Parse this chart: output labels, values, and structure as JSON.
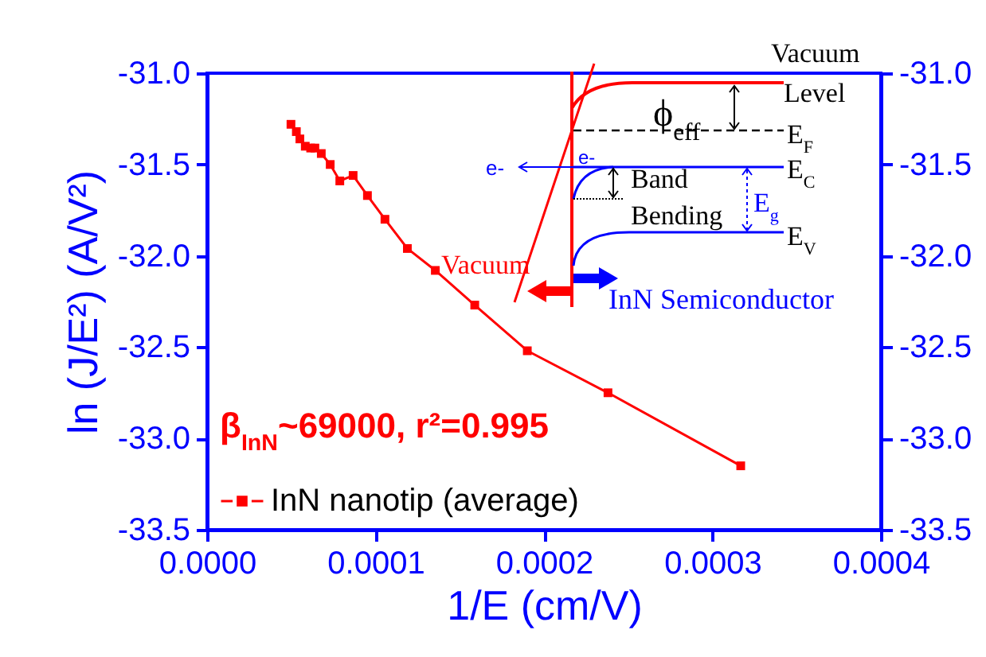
{
  "chart_data": {
    "type": "line",
    "xlabel": "1/E (cm/V)",
    "ylabel": "ln (J/E²) (A/V²)",
    "x": [
      4.98e-05,
      5.3e-05,
      5.51e-05,
      5.83e-05,
      6.15e-05,
      6.4e-05,
      6.78e-05,
      7.31e-05,
      7.88e-05,
      8.67e-05,
      9.52e-05,
      0.0001056,
      0.0001189,
      0.0001355,
      0.0001589,
      0.0001901,
      0.000238,
      0.0003168
    ],
    "series": [
      {
        "name": "InN nanotip (average)",
        "color": "#ff0000",
        "values": [
          -31.28,
          -31.32,
          -31.36,
          -31.4,
          -31.41,
          -31.41,
          -31.44,
          -31.5,
          -31.59,
          -31.56,
          -31.67,
          -31.8,
          -31.96,
          -32.08,
          -32.27,
          -32.52,
          -32.75,
          -33.15
        ]
      }
    ],
    "xlim": [
      0,
      0.0004
    ],
    "xticks": [
      {
        "value": 0,
        "label": "0.0000"
      },
      {
        "value": 0.0001,
        "label": "0.0001"
      },
      {
        "value": 0.0002,
        "label": "0.0002"
      },
      {
        "value": 0.0003,
        "label": "0.0003"
      },
      {
        "value": 0.0004,
        "label": "0.0004"
      }
    ],
    "ylim": [
      -33.5,
      -31
    ],
    "yticks": [
      {
        "value": -33.5,
        "label": "-33.5"
      },
      {
        "value": -33,
        "label": "-33.0"
      },
      {
        "value": -32.5,
        "label": "-32.5"
      },
      {
        "value": -32,
        "label": "-32.0"
      },
      {
        "value": -31.5,
        "label": "-31.5"
      },
      {
        "value": -31,
        "label": "-31.0"
      }
    ],
    "y2lim": [
      -33.5,
      -31
    ],
    "y2ticks": [
      {
        "value": -33.5,
        "label": "-33.5"
      },
      {
        "value": -33,
        "label": "-33.0"
      },
      {
        "value": -32.5,
        "label": "-32.5"
      },
      {
        "value": -32,
        "label": "-32.0"
      },
      {
        "value": -31.5,
        "label": "-31.5"
      },
      {
        "value": -31,
        "label": "-31.0"
      }
    ],
    "marker": "square",
    "line_style": "solid",
    "legend": "bottom left",
    "grid": false,
    "annotations": [
      "β$_{InN}$~69000, r²=0.995",
      "Vacuum",
      "Level",
      "ϕ$_{eff}$",
      "E$_{F}$",
      "E$_{C}$",
      "Band",
      "Bending",
      "E$_{g}$",
      "E$_{V}$",
      "e-",
      "e-",
      "Vacuum",
      "InN Semiconductor"
    ]
  }
}
